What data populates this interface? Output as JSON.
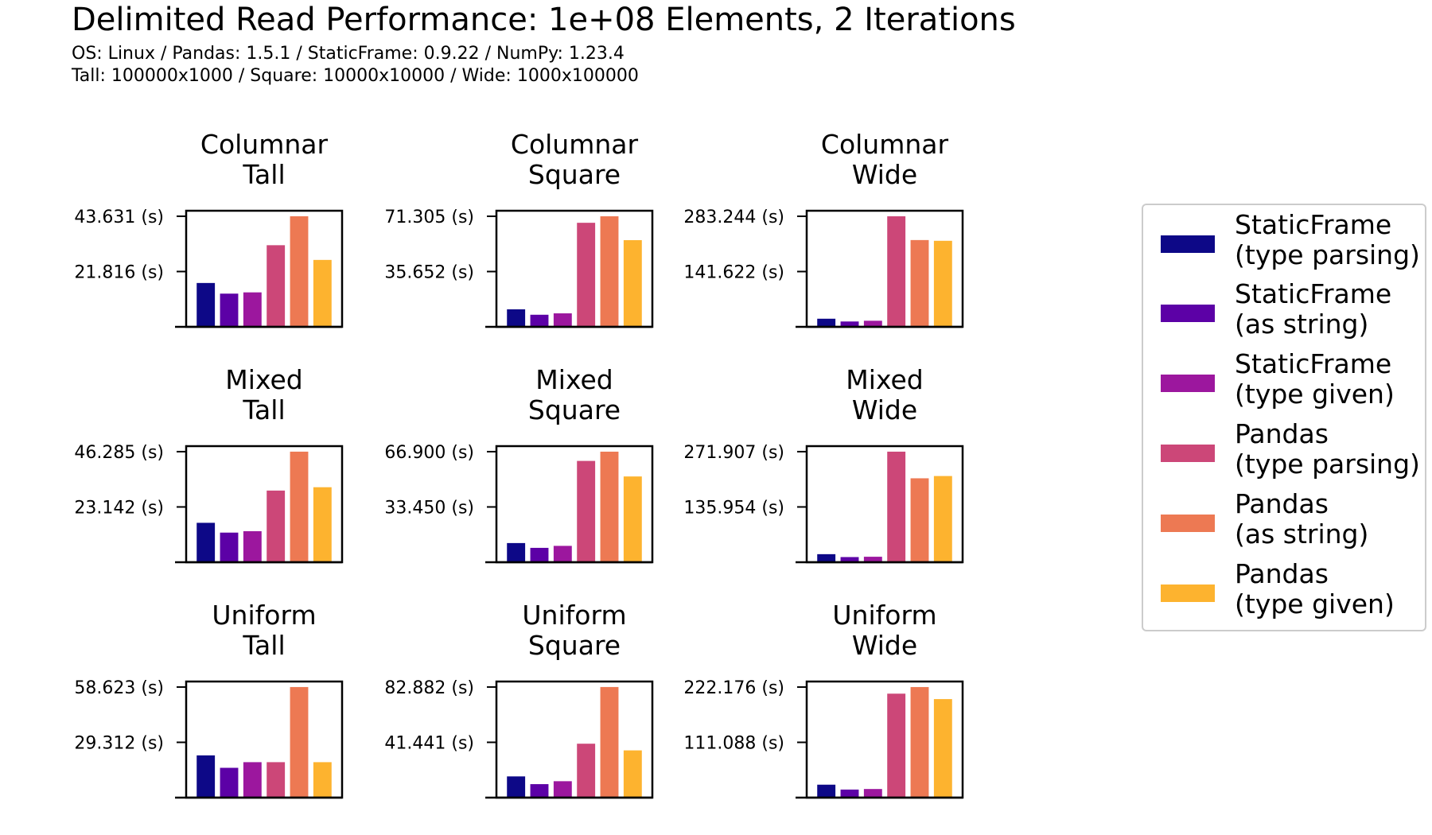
{
  "title": "Delimited Read Performance: 1e+08 Elements, 2 Iterations",
  "subtitle_lines": [
    "OS: Linux / Pandas: 1.5.1 / StaticFrame: 0.9.22 / NumPy: 1.23.4",
    "Tall: 100000x1000 / Square: 10000x10000 / Wide: 1000x100000"
  ],
  "legend": [
    {
      "line1": "StaticFrame",
      "line2": "(type parsing)",
      "color": "#0d0887"
    },
    {
      "line1": "StaticFrame",
      "line2": "(as string)",
      "color": "#5c01a6"
    },
    {
      "line1": "StaticFrame",
      "line2": "(type given)",
      "color": "#9c179e"
    },
    {
      "line1": "Pandas",
      "line2": "(type parsing)",
      "color": "#cc4778"
    },
    {
      "line1": "Pandas",
      "line2": "(as string)",
      "color": "#ed7953"
    },
    {
      "line1": "Pandas",
      "line2": "(type given)",
      "color": "#fdb32f"
    }
  ],
  "chart_data": [
    {
      "type": "bar",
      "title_line1": "Columnar",
      "title_line2": "Tall",
      "categories": [
        "StaticFrame (type parsing)",
        "StaticFrame (as string)",
        "StaticFrame (type given)",
        "Pandas (type parsing)",
        "Pandas (as string)",
        "Pandas (type given)"
      ],
      "values": [
        17.3,
        13.1,
        13.6,
        32.2,
        43.631,
        26.4
      ],
      "ylim": [
        0,
        45.8
      ],
      "ytick_labels": [
        "21.816 (s)",
        "43.631 (s)"
      ],
      "ytick_values": [
        21.816,
        43.631
      ]
    },
    {
      "type": "bar",
      "title_line1": "Columnar",
      "title_line2": "Square",
      "categories": [
        "StaticFrame (type parsing)",
        "StaticFrame (as string)",
        "StaticFrame (type given)",
        "Pandas (type parsing)",
        "Pandas (as string)",
        "Pandas (type given)"
      ],
      "values": [
        11.3,
        7.8,
        8.7,
        67.1,
        71.305,
        55.9
      ],
      "ylim": [
        0,
        74.87
      ],
      "ytick_labels": [
        "35.652 (s)",
        "71.305 (s)"
      ],
      "ytick_values": [
        35.652,
        71.305
      ]
    },
    {
      "type": "bar",
      "title_line1": "Columnar",
      "title_line2": "Wide",
      "categories": [
        "StaticFrame (type parsing)",
        "StaticFrame (as string)",
        "StaticFrame (type given)",
        "Pandas (type parsing)",
        "Pandas (as string)",
        "Pandas (type given)"
      ],
      "values": [
        20.8,
        13.7,
        15.6,
        283.244,
        222.3,
        220.4
      ],
      "ylim": [
        0,
        297.41
      ],
      "ytick_labels": [
        "141.622 (s)",
        "283.244 (s)"
      ],
      "ytick_values": [
        141.622,
        283.244
      ]
    },
    {
      "type": "bar",
      "title_line1": "Mixed",
      "title_line2": "Tall",
      "categories": [
        "StaticFrame (type parsing)",
        "StaticFrame (as string)",
        "StaticFrame (type given)",
        "Pandas (type parsing)",
        "Pandas (as string)",
        "Pandas (type given)"
      ],
      "values": [
        16.5,
        12.4,
        13.0,
        30.0,
        46.285,
        31.4
      ],
      "ylim": [
        0,
        48.6
      ],
      "ytick_labels": [
        "23.142 (s)",
        "46.285 (s)"
      ],
      "ytick_values": [
        23.142,
        46.285
      ]
    },
    {
      "type": "bar",
      "title_line1": "Mixed",
      "title_line2": "Square",
      "categories": [
        "StaticFrame (type parsing)",
        "StaticFrame (as string)",
        "StaticFrame (type given)",
        "Pandas (type parsing)",
        "Pandas (as string)",
        "Pandas (type given)"
      ],
      "values": [
        11.6,
        8.7,
        9.9,
        61.3,
        66.9,
        51.9
      ],
      "ylim": [
        0,
        70.25
      ],
      "ytick_labels": [
        "33.450 (s)",
        "66.900 (s)"
      ],
      "ytick_values": [
        33.45,
        66.9
      ]
    },
    {
      "type": "bar",
      "title_line1": "Mixed",
      "title_line2": "Wide",
      "categories": [
        "StaticFrame (type parsing)",
        "StaticFrame (as string)",
        "StaticFrame (type given)",
        "Pandas (type parsing)",
        "Pandas (as string)",
        "Pandas (type given)"
      ],
      "values": [
        19.8,
        12.7,
        13.5,
        271.907,
        206.4,
        212.0
      ],
      "ylim": [
        0,
        285.5
      ],
      "ytick_labels": [
        "135.954 (s)",
        "271.907 (s)"
      ],
      "ytick_values": [
        135.954,
        271.907
      ]
    },
    {
      "type": "bar",
      "title_line1": "Uniform",
      "title_line2": "Tall",
      "categories": [
        "StaticFrame (type parsing)",
        "StaticFrame (as string)",
        "StaticFrame (type given)",
        "Pandas (type parsing)",
        "Pandas (as string)",
        "Pandas (type given)"
      ],
      "values": [
        22.4,
        15.8,
        18.8,
        18.8,
        58.623,
        18.8
      ],
      "ylim": [
        0,
        61.55
      ],
      "ytick_labels": [
        "29.312 (s)",
        "58.623 (s)"
      ],
      "ytick_values": [
        29.312,
        58.623
      ]
    },
    {
      "type": "bar",
      "title_line1": "Uniform",
      "title_line2": "Square",
      "categories": [
        "StaticFrame (type parsing)",
        "StaticFrame (as string)",
        "StaticFrame (type given)",
        "Pandas (type parsing)",
        "Pandas (as string)",
        "Pandas (type given)"
      ],
      "values": [
        15.9,
        10.1,
        12.3,
        40.4,
        82.882,
        35.4
      ],
      "ylim": [
        0,
        87.0
      ],
      "ytick_labels": [
        "41.441 (s)",
        "82.882 (s)"
      ],
      "ytick_values": [
        41.441,
        82.882
      ]
    },
    {
      "type": "bar",
      "title_line1": "Uniform",
      "title_line2": "Wide",
      "categories": [
        "StaticFrame (type parsing)",
        "StaticFrame (as string)",
        "StaticFrame (type given)",
        "Pandas (type parsing)",
        "Pandas (as string)",
        "Pandas (type given)"
      ],
      "values": [
        26.0,
        16.2,
        17.3,
        208.9,
        222.176,
        198.0
      ],
      "ylim": [
        0,
        233.3
      ],
      "ytick_labels": [
        "111.088 (s)",
        "222.176 (s)"
      ],
      "ytick_values": [
        111.088,
        222.176
      ]
    }
  ]
}
